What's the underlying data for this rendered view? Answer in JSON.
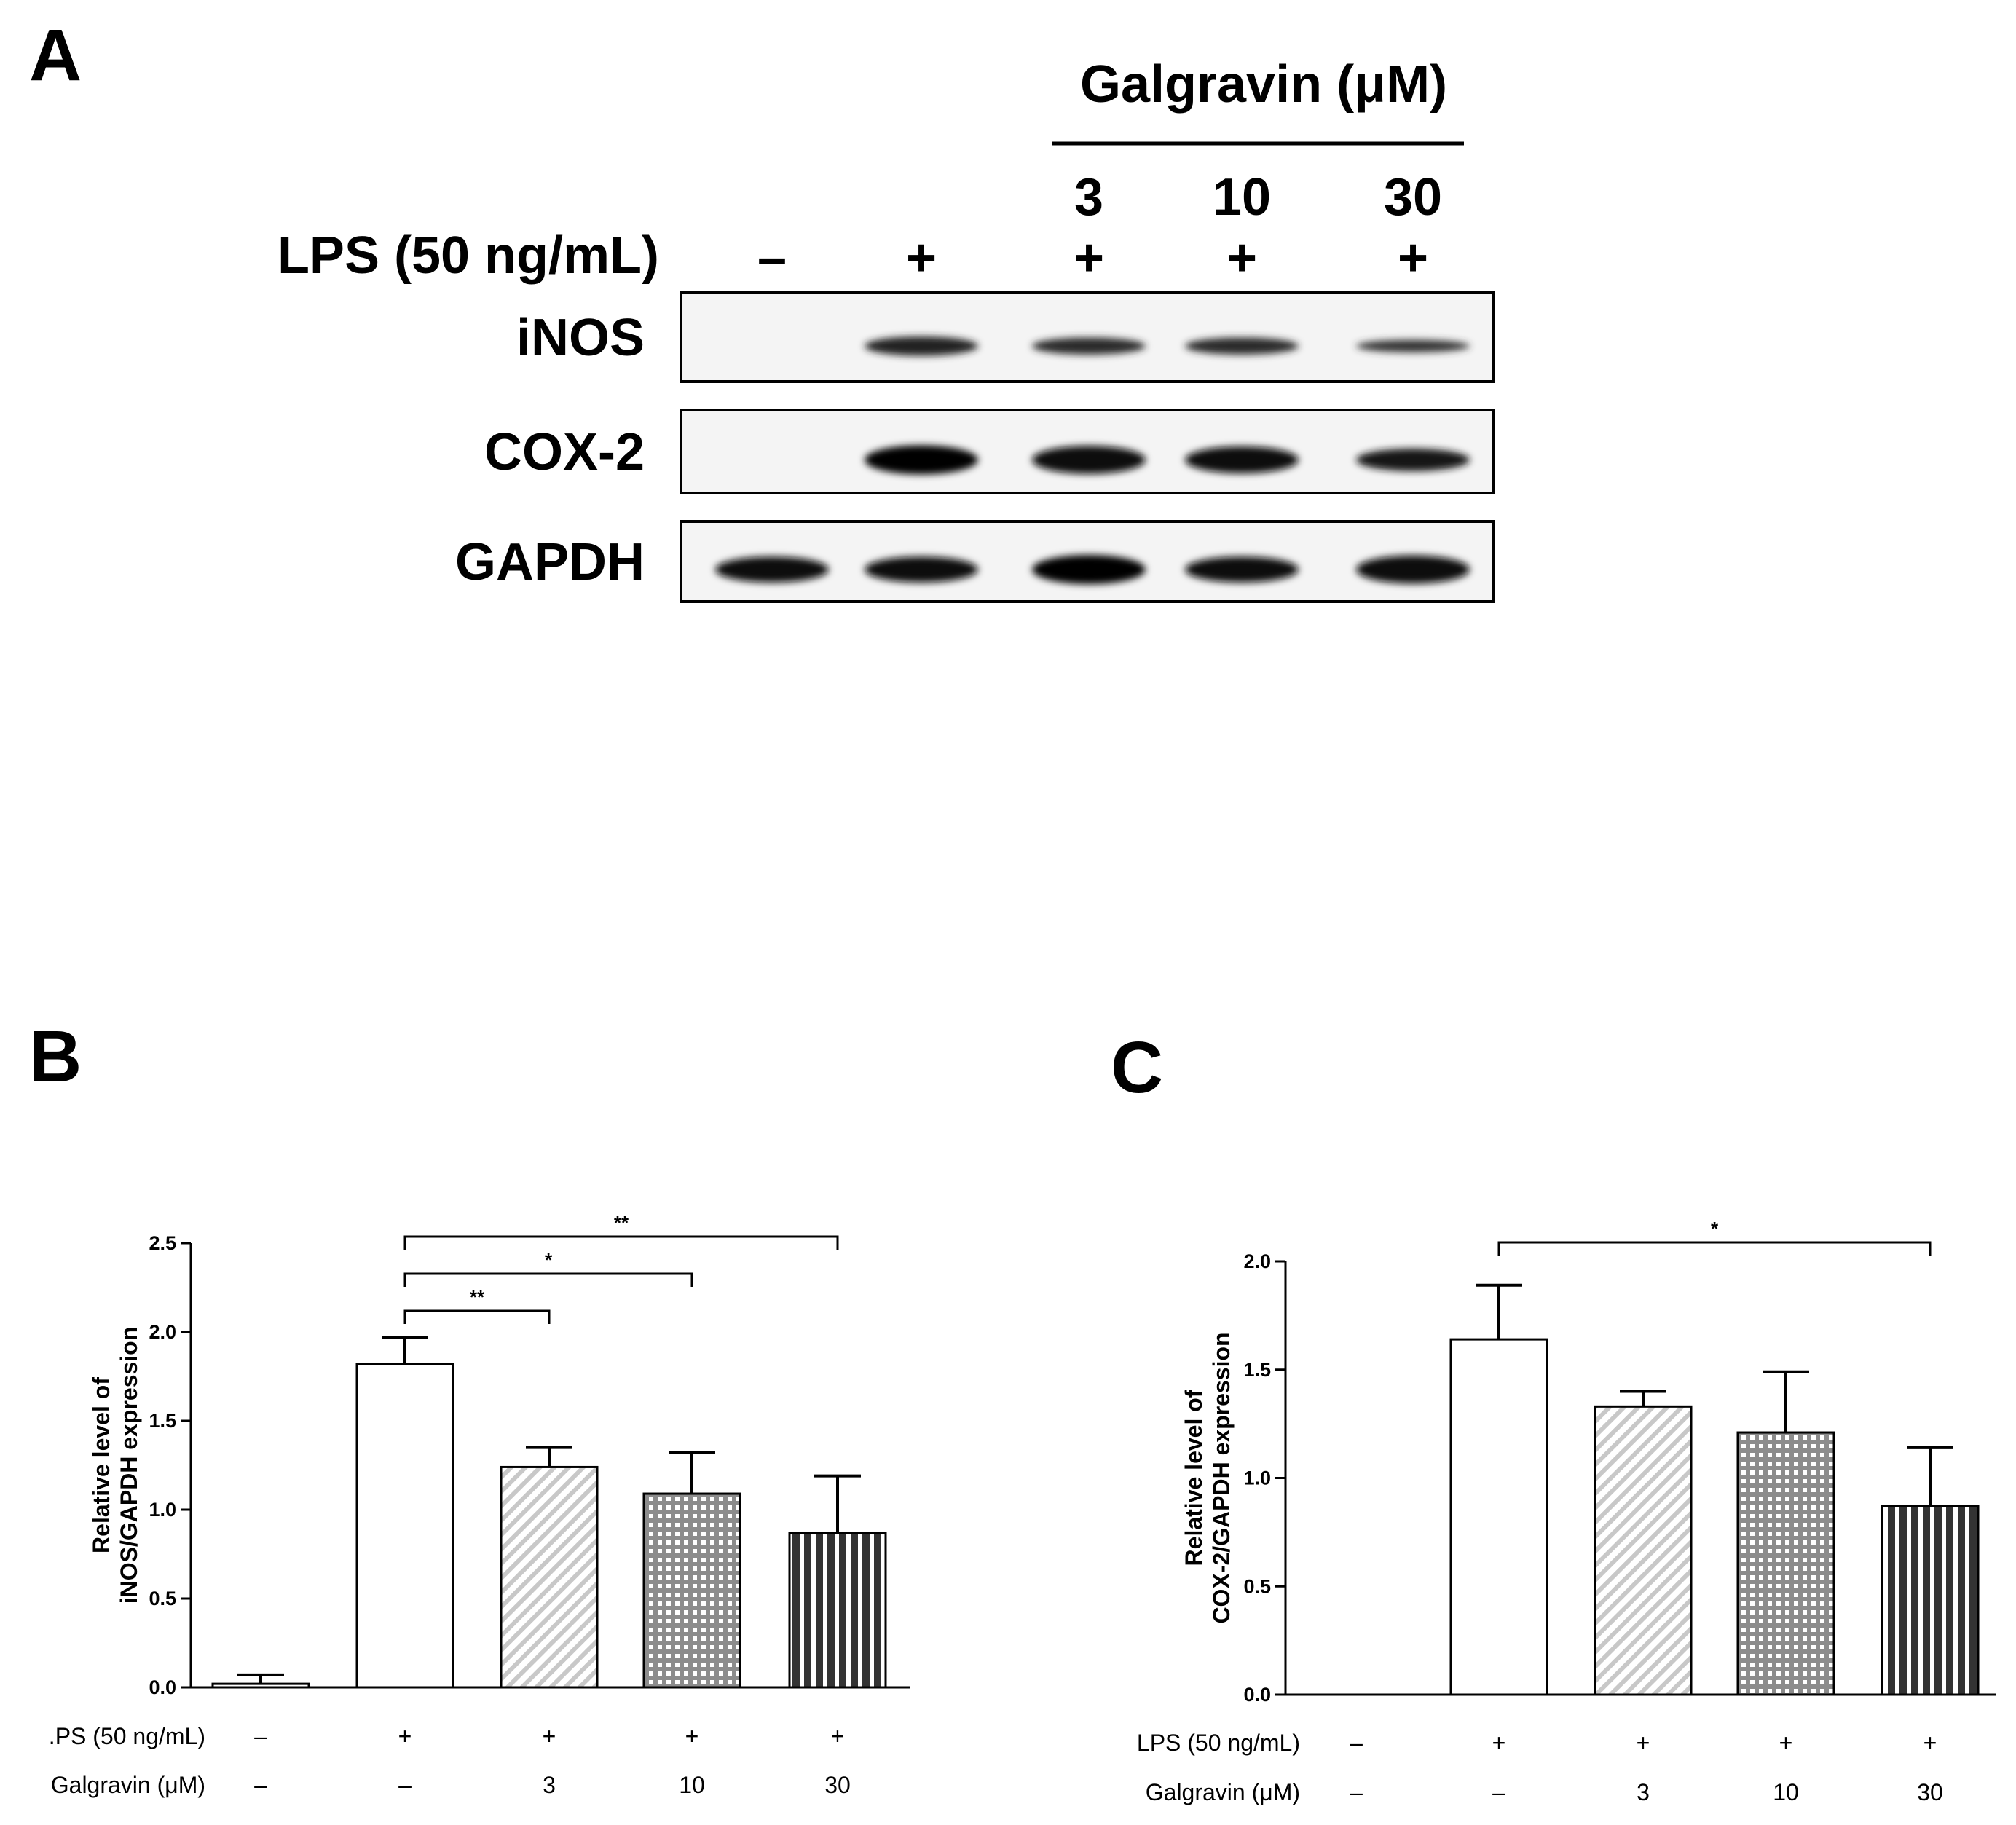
{
  "panels": {
    "A": {
      "letter": "A",
      "treatment_header": "Galgravin (μM)",
      "row_label": "LPS (50 ng/mL)",
      "doses": [
        "",
        "",
        "3",
        "10",
        "30"
      ],
      "lps": [
        "–",
        "+",
        "+",
        "+",
        "+"
      ],
      "blots": [
        {
          "label": "iNOS",
          "intensity": [
            0.0,
            0.55,
            0.45,
            0.45,
            0.25
          ]
        },
        {
          "label": "COX-2",
          "intensity": [
            0.0,
            1.0,
            0.95,
            0.9,
            0.7
          ]
        },
        {
          "label": "GAPDH",
          "intensity": [
            0.85,
            0.85,
            1.0,
            0.85,
            0.95
          ]
        }
      ]
    },
    "B": {
      "letter": "B"
    },
    "C": {
      "letter": "C"
    }
  },
  "chart_data": [
    {
      "panel": "B",
      "type": "bar",
      "ylabel": "Relative level of\niNOS/GAPDH expression",
      "ylim": [
        0,
        2.5
      ],
      "yticks": [
        "0.0",
        "0.5",
        "1.0",
        "1.5",
        "2.0",
        "2.5"
      ],
      "values": [
        0.02,
        1.82,
        1.24,
        1.09,
        0.87
      ],
      "errors": [
        0.05,
        0.15,
        0.11,
        0.23,
        0.32
      ],
      "patterns": [
        "plain",
        "plain",
        "diagonal",
        "grid",
        "vertical"
      ],
      "conditions": [
        {
          "label": ".PS (50 ng/mL)",
          "values": [
            "–",
            "+",
            "+",
            "+",
            "+"
          ]
        },
        {
          "label": "Galgravin (μM)",
          "values": [
            "–",
            "–",
            "3",
            "10",
            "30"
          ]
        }
      ],
      "significance": [
        {
          "from": 1,
          "to": 4,
          "label": "**"
        },
        {
          "from": 1,
          "to": 3,
          "label": "*"
        },
        {
          "from": 1,
          "to": 2,
          "label": "**"
        }
      ]
    },
    {
      "panel": "C",
      "type": "bar",
      "ylabel": "Relative level of\nCOX-2/GAPDH expression",
      "ylim": [
        0,
        2.0
      ],
      "yticks": [
        "0.0",
        "0.5",
        "1.0",
        "1.5",
        "2.0"
      ],
      "values": [
        0,
        1.64,
        1.33,
        1.21,
        0.87
      ],
      "errors": [
        0,
        0.25,
        0.07,
        0.28,
        0.27
      ],
      "patterns": [
        "plain",
        "plain",
        "diagonal",
        "grid",
        "vertical"
      ],
      "conditions": [
        {
          "label": "LPS (50 ng/mL)",
          "values": [
            "–",
            "+",
            "+",
            "+",
            "+"
          ]
        },
        {
          "label": "Galgravin (μM)",
          "values": [
            "–",
            "–",
            "3",
            "10",
            "30"
          ]
        }
      ],
      "significance": [
        {
          "from": 1,
          "to": 4,
          "label": "*"
        }
      ]
    }
  ]
}
